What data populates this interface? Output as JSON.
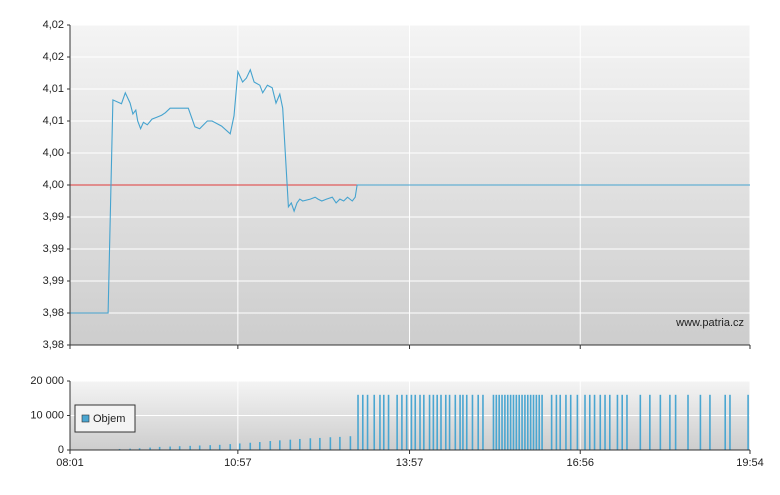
{
  "chart_data": [
    {
      "type": "line",
      "xlim": [
        "08:01",
        "19:54"
      ],
      "x": [
        "08:01",
        "08:41",
        "08:46",
        "08:55",
        "08:59",
        "09:04",
        "09:07",
        "09:10",
        "09:12",
        "09:15",
        "09:18",
        "09:22",
        "09:27",
        "09:32",
        "09:37",
        "09:41",
        "09:46",
        "10:05",
        "10:12",
        "10:17",
        "10:25",
        "10:30",
        "10:40",
        "10:49",
        "10:53",
        "10:57",
        "11:02",
        "11:06",
        "11:10",
        "11:14",
        "11:20",
        "11:23",
        "11:28",
        "11:33",
        "11:37",
        "11:41",
        "11:44",
        "11:50",
        "11:53",
        "11:56",
        "11:59",
        "12:02",
        "12:05",
        "12:13",
        "12:18",
        "12:21",
        "12:25",
        "12:30",
        "12:36",
        "12:40",
        "12:44",
        "12:48",
        "12:52",
        "12:57",
        "13:00",
        "13:02",
        "19:54"
      ],
      "values": [
        3.98,
        3.98,
        4.0133,
        4.0127,
        4.0144,
        4.0128,
        4.0111,
        4.0117,
        4.01,
        4.0088,
        4.0098,
        4.0094,
        4.0103,
        4.0106,
        4.0109,
        4.0113,
        4.012,
        4.012,
        4.0091,
        4.0088,
        4.01,
        4.01,
        4.0092,
        4.008,
        4.0108,
        4.0177,
        4.0161,
        4.0167,
        4.018,
        4.0161,
        4.0156,
        4.0144,
        4.0156,
        4.0152,
        4.0128,
        4.0142,
        4.012,
        3.9966,
        3.9972,
        3.9959,
        3.9972,
        3.9978,
        3.9975,
        3.9978,
        3.9981,
        3.9978,
        3.9975,
        3.9978,
        3.9981,
        3.9972,
        3.9978,
        3.9975,
        3.9981,
        3.9975,
        3.9981,
        4.0,
        4.0
      ],
      "color": "#45a3cf",
      "ylim": [
        3.975,
        4.025
      ],
      "yticks": [
        {
          "value": 3.975,
          "label": "3,98"
        },
        {
          "value": 3.98,
          "label": "3,98"
        },
        {
          "value": 3.985,
          "label": "3,99"
        },
        {
          "value": 3.99,
          "label": "3,99"
        },
        {
          "value": 3.995,
          "label": "3,99"
        },
        {
          "value": 4.0,
          "label": "4,00"
        },
        {
          "value": 4.005,
          "label": "4,00"
        },
        {
          "value": 4.01,
          "label": "4,01"
        },
        {
          "value": 4.015,
          "label": "4,01"
        },
        {
          "value": 4.02,
          "label": "4,02"
        },
        {
          "value": 4.025,
          "label": "4,02"
        }
      ],
      "reference_line": 4.0,
      "reference_color": "#e03a3a",
      "grid": true,
      "watermark": "www.patria.cz"
    },
    {
      "type": "bar",
      "xlim": [
        "08:01",
        "19:54"
      ],
      "xticks": [
        "08:01",
        "10:57",
        "13:57",
        "16:56",
        "19:54"
      ],
      "x": [
        "08:53",
        "09:04",
        "09:14",
        "09:25",
        "09:35",
        "09:46",
        "09:56",
        "10:07",
        "10:17",
        "10:28",
        "10:38",
        "10:49",
        "10:59",
        "11:10",
        "11:20",
        "11:31",
        "11:41",
        "11:52",
        "12:02",
        "12:13",
        "12:23",
        "12:34",
        "12:44",
        "12:55",
        "13:03",
        "13:08",
        "13:13",
        "13:20",
        "13:26",
        "13:30",
        "13:35",
        "13:44",
        "13:49",
        "13:54",
        "13:59",
        "14:03",
        "14:08",
        "14:12",
        "14:18",
        "14:22",
        "14:26",
        "14:30",
        "14:35",
        "14:39",
        "14:45",
        "14:50",
        "14:53",
        "14:57",
        "15:03",
        "15:09",
        "15:14",
        "15:25",
        "15:28",
        "15:31",
        "15:34",
        "15:37",
        "15:40",
        "15:43",
        "15:46",
        "15:49",
        "15:52",
        "15:55",
        "15:58",
        "16:01",
        "16:04",
        "16:07",
        "16:10",
        "16:13",
        "16:16",
        "16:26",
        "16:31",
        "16:35",
        "16:41",
        "16:46",
        "16:53",
        "17:01",
        "17:06",
        "17:11",
        "17:17",
        "17:22",
        "17:27",
        "17:35",
        "17:40",
        "17:45",
        "17:59",
        "18:09",
        "18:20",
        "18:30",
        "18:36",
        "18:49",
        "19:02",
        "19:12",
        "19:28",
        "19:33",
        "19:52"
      ],
      "series": [
        {
          "name": "Objem",
          "color": "#4aa6d1",
          "values": [
            300,
            400,
            500,
            700,
            900,
            1000,
            1100,
            1200,
            1300,
            1400,
            1500,
            1700,
            1900,
            2100,
            2300,
            2600,
            2800,
            3000,
            3200,
            3400,
            3500,
            3700,
            3800,
            4000,
            16000,
            16000,
            16000,
            16000,
            16000,
            16000,
            16000,
            16000,
            16000,
            16000,
            16000,
            16000,
            16000,
            16000,
            16000,
            16000,
            16000,
            16000,
            16000,
            16000,
            16000,
            16000,
            16000,
            16000,
            16000,
            16000,
            16000,
            16000,
            16000,
            16000,
            16000,
            16000,
            16000,
            16000,
            16000,
            16000,
            16000,
            16000,
            16000,
            16000,
            16000,
            16000,
            16000,
            16000,
            16000,
            16000,
            16000,
            16000,
            16000,
            16000,
            16000,
            16000,
            16000,
            16000,
            16000,
            16000,
            16000,
            16000,
            16000,
            16000,
            16000,
            16000,
            16000,
            16000,
            16000,
            16000,
            16000,
            16000,
            16000,
            16000,
            16000
          ]
        }
      ],
      "ylim": [
        0,
        20000
      ],
      "yticks": [
        0,
        {
          "value": 10000,
          "label": "10 000"
        },
        {
          "value": 20000,
          "label": "20 000"
        }
      ],
      "grid": true,
      "legend": "left"
    }
  ]
}
